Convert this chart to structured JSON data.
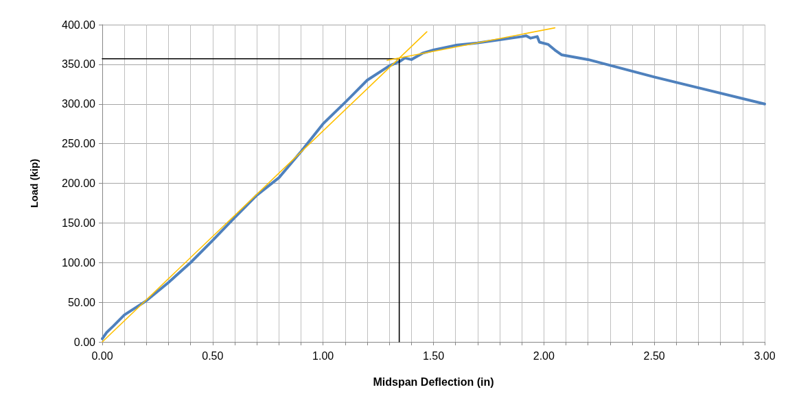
{
  "chart_data": {
    "type": "line",
    "xlabel": "Midspan Deflection (in)",
    "ylabel": "Load (kip)",
    "xlim": [
      0,
      3
    ],
    "ylim": [
      0,
      400
    ],
    "xticks": [
      {
        "value": 0,
        "label": "0.00"
      },
      {
        "value": 0.1,
        "label": null
      },
      {
        "value": 0.2,
        "label": null
      },
      {
        "value": 0.3,
        "label": null
      },
      {
        "value": 0.4,
        "label": null
      },
      {
        "value": 0.5,
        "label": "0.50"
      },
      {
        "value": 0.6,
        "label": null
      },
      {
        "value": 0.7,
        "label": null
      },
      {
        "value": 0.8,
        "label": null
      },
      {
        "value": 0.9,
        "label": null
      },
      {
        "value": 1,
        "label": "1.00"
      },
      {
        "value": 1.1,
        "label": null
      },
      {
        "value": 1.2,
        "label": null
      },
      {
        "value": 1.3,
        "label": null
      },
      {
        "value": 1.4,
        "label": null
      },
      {
        "value": 1.5,
        "label": "1.50"
      },
      {
        "value": 1.6,
        "label": null
      },
      {
        "value": 1.7,
        "label": null
      },
      {
        "value": 1.8,
        "label": null
      },
      {
        "value": 1.9,
        "label": null
      },
      {
        "value": 2,
        "label": "2.00"
      },
      {
        "value": 2.1,
        "label": null
      },
      {
        "value": 2.2,
        "label": null
      },
      {
        "value": 2.3,
        "label": null
      },
      {
        "value": 2.4,
        "label": null
      },
      {
        "value": 2.5,
        "label": "2.50"
      },
      {
        "value": 2.6,
        "label": null
      },
      {
        "value": 2.7,
        "label": null
      },
      {
        "value": 2.8,
        "label": null
      },
      {
        "value": 2.9,
        "label": null
      },
      {
        "value": 3,
        "label": "3.00"
      }
    ],
    "yticks": [
      {
        "value": 0,
        "label": "0.00"
      },
      {
        "value": 50,
        "label": "50.00"
      },
      {
        "value": 100,
        "label": "100.00"
      },
      {
        "value": 150,
        "label": "150.00"
      },
      {
        "value": 200,
        "label": "200.00"
      },
      {
        "value": 250,
        "label": "250.00"
      },
      {
        "value": 300,
        "label": "300.00"
      },
      {
        "value": 350,
        "label": "350.00"
      },
      {
        "value": 400,
        "label": "400.00"
      }
    ],
    "grid": true,
    "marker": "none",
    "line_style": "solid",
    "series": [
      {
        "color": "#4f81bd",
        "x": [
          0,
          0.02,
          0.05,
          0.1,
          0.2,
          0.3,
          0.4,
          0.5,
          0.6,
          0.7,
          0.8,
          0.9,
          1.0,
          1.1,
          1.2,
          1.3,
          1.35,
          1.37,
          1.4,
          1.45,
          1.5,
          1.6,
          1.7,
          1.8,
          1.9,
          1.92,
          1.94,
          1.97,
          1.98,
          2.02,
          2.05,
          2.08,
          2.2,
          2.5,
          3.0
        ],
        "values": [
          4,
          12,
          20,
          34,
          52,
          75,
          100,
          128,
          157,
          185,
          207,
          240,
          275,
          302,
          330,
          348,
          354,
          358,
          356,
          364,
          368,
          374,
          377,
          381,
          385,
          386,
          383,
          385,
          378,
          375,
          368,
          362,
          356,
          334,
          300
        ]
      },
      {
        "color": "#000000",
        "x": [
          0,
          1.345,
          1.345
        ],
        "values": [
          357,
          357,
          0
        ]
      },
      {
        "color": "#ffc000",
        "x": [
          0,
          1.47
        ],
        "values": [
          0,
          391
        ]
      },
      {
        "color": "#ffc000",
        "x": [
          1.29,
          2.05
        ],
        "values": [
          355,
          396
        ]
      }
    ]
  }
}
